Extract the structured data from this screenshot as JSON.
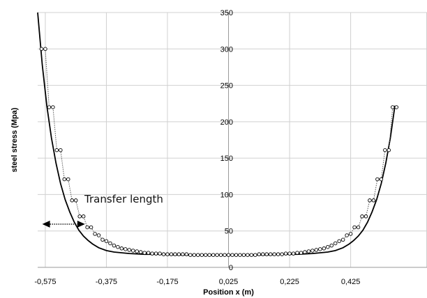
{
  "chart_data": {
    "type": "line",
    "title": "",
    "xlabel": "Position x (m)",
    "ylabel": "steel stress (Mpa)",
    "xlim": [
      -0.6,
      0.675
    ],
    "ylim": [
      0,
      350
    ],
    "x_ticks": [
      "-0,575",
      "-0,375",
      "-0,175",
      "0,025",
      "0,225",
      "0,425"
    ],
    "x_tick_values": [
      -0.575,
      -0.375,
      -0.175,
      0.025,
      0.225,
      0.425
    ],
    "y_ticks": [
      "0",
      "50",
      "100",
      "150",
      "200",
      "250",
      "300",
      "350"
    ],
    "y_tick_values": [
      0,
      50,
      100,
      150,
      200,
      250,
      300,
      350
    ],
    "grid": true,
    "series": [
      {
        "style": "solid-line",
        "color": "#000000",
        "x": [
          -0.6,
          -0.585,
          -0.57,
          -0.555,
          -0.54,
          -0.525,
          -0.51,
          -0.495,
          -0.48,
          -0.465,
          -0.45,
          -0.435,
          -0.42,
          -0.4,
          -0.375,
          -0.35,
          -0.3,
          -0.25,
          -0.2,
          -0.15,
          -0.1,
          -0.05,
          0.0,
          0.05,
          0.1,
          0.15,
          0.2,
          0.25,
          0.3,
          0.35,
          0.375,
          0.4,
          0.42,
          0.435,
          0.45,
          0.465,
          0.48,
          0.495,
          0.51,
          0.525,
          0.54,
          0.555,
          0.57
        ],
        "y": [
          350,
          278,
          222,
          178,
          143,
          115,
          93,
          76,
          62,
          51,
          43,
          37,
          32,
          27,
          23,
          21,
          19,
          18,
          18,
          17,
          17,
          17,
          17,
          17,
          17,
          17,
          18,
          18,
          19,
          21,
          23,
          27,
          32,
          37,
          43,
          51,
          62,
          76,
          93,
          115,
          143,
          178,
          222
        ]
      },
      {
        "style": "markers",
        "color": "#000000",
        "x": [
          -0.5875,
          -0.575,
          -0.5625,
          -0.55,
          -0.5375,
          -0.525,
          -0.5125,
          -0.5,
          -0.4875,
          -0.475,
          -0.4625,
          -0.45,
          -0.4375,
          -0.425,
          -0.4125,
          -0.4,
          -0.3875,
          -0.375,
          -0.3625,
          -0.35,
          -0.3375,
          -0.325,
          -0.3125,
          -0.3,
          -0.2875,
          -0.275,
          -0.2625,
          -0.25,
          -0.2375,
          -0.225,
          -0.2125,
          -0.2,
          -0.1875,
          -0.175,
          -0.1625,
          -0.15,
          -0.1375,
          -0.125,
          -0.1125,
          -0.1,
          -0.0875,
          -0.075,
          -0.0625,
          -0.05,
          -0.0375,
          -0.025,
          -0.0125,
          0.0,
          0.0125,
          0.025,
          0.0375,
          0.05,
          0.0625,
          0.075,
          0.0875,
          0.1,
          0.1125,
          0.125,
          0.1375,
          0.15,
          0.1625,
          0.175,
          0.1875,
          0.2,
          0.2125,
          0.225,
          0.2375,
          0.25,
          0.2625,
          0.275,
          0.2875,
          0.3,
          0.3125,
          0.325,
          0.3375,
          0.35,
          0.3625,
          0.375,
          0.3875,
          0.4,
          0.4125,
          0.425,
          0.4375,
          0.45,
          0.4625,
          0.475,
          0.4875,
          0.5,
          0.5125,
          0.525,
          0.5375,
          0.55,
          0.5625,
          0.575
        ],
        "y": [
          300,
          300,
          220,
          220,
          161,
          161,
          121,
          121,
          92,
          92,
          70,
          70,
          55,
          55,
          46,
          44,
          38,
          36,
          33,
          30,
          28,
          26,
          25,
          24,
          23,
          22,
          21,
          20,
          20,
          19,
          19,
          19,
          18,
          18,
          18,
          18,
          18,
          18,
          18,
          17,
          17,
          17,
          17,
          17,
          17,
          17,
          17,
          17,
          17,
          17,
          17,
          17,
          17,
          17,
          17,
          17,
          17,
          18,
          18,
          18,
          18,
          18,
          18,
          18,
          19,
          19,
          19,
          20,
          20,
          21,
          22,
          23,
          24,
          25,
          26,
          28,
          30,
          33,
          36,
          38,
          44,
          46,
          55,
          55,
          70,
          70,
          92,
          92,
          121,
          121,
          161,
          161,
          220,
          220
        ]
      }
    ],
    "annotation": {
      "text": "Transfer length",
      "arrow_x": [
        -0.585,
        -0.445
      ],
      "arrow_y": 68
    }
  }
}
